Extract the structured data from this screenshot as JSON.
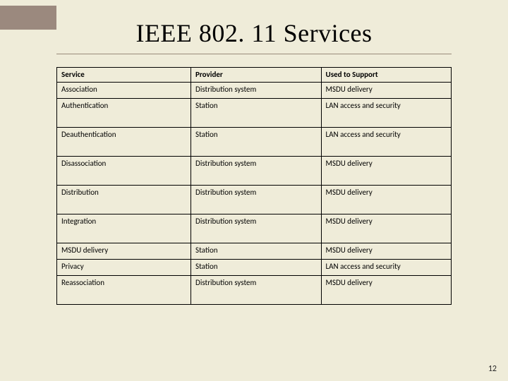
{
  "slide": {
    "title": "IEEE 802. 11 Services",
    "page_number": "12",
    "background_color": "#efecd9",
    "accent_color": "#9b897e",
    "rule_color": "#9a8b7a",
    "title_fontsize": 36
  },
  "table": {
    "type": "table",
    "border_color": "#000000",
    "font_family": "Calibri",
    "font_size": 11,
    "columns": [
      {
        "label": "Service",
        "width_pct": 34
      },
      {
        "label": "Provider",
        "width_pct": 33
      },
      {
        "label": "Used to Support",
        "width_pct": 33
      }
    ],
    "rows": [
      {
        "cells": [
          "Association",
          "Distribution system",
          "MSDU delivery"
        ],
        "short": true
      },
      {
        "cells": [
          "Authentication",
          "Station",
          "LAN access and security"
        ],
        "short": false
      },
      {
        "cells": [
          "Deauthentication",
          "Station",
          "LAN access and security"
        ],
        "short": false
      },
      {
        "cells": [
          "Disassociation",
          "Distribution system",
          "MSDU delivery"
        ],
        "short": false
      },
      {
        "cells": [
          "Distribution",
          "Distribution system",
          "MSDU delivery"
        ],
        "short": false
      },
      {
        "cells": [
          "Integration",
          "Distribution system",
          "MSDU delivery"
        ],
        "short": false
      },
      {
        "cells": [
          "MSDU delivery",
          "Station",
          "MSDU delivery"
        ],
        "short": true
      },
      {
        "cells": [
          "Privacy",
          "Station",
          "LAN access and security"
        ],
        "short": true
      },
      {
        "cells": [
          "Reassociation",
          "Distribution system",
          "MSDU delivery"
        ],
        "short": false
      }
    ]
  }
}
